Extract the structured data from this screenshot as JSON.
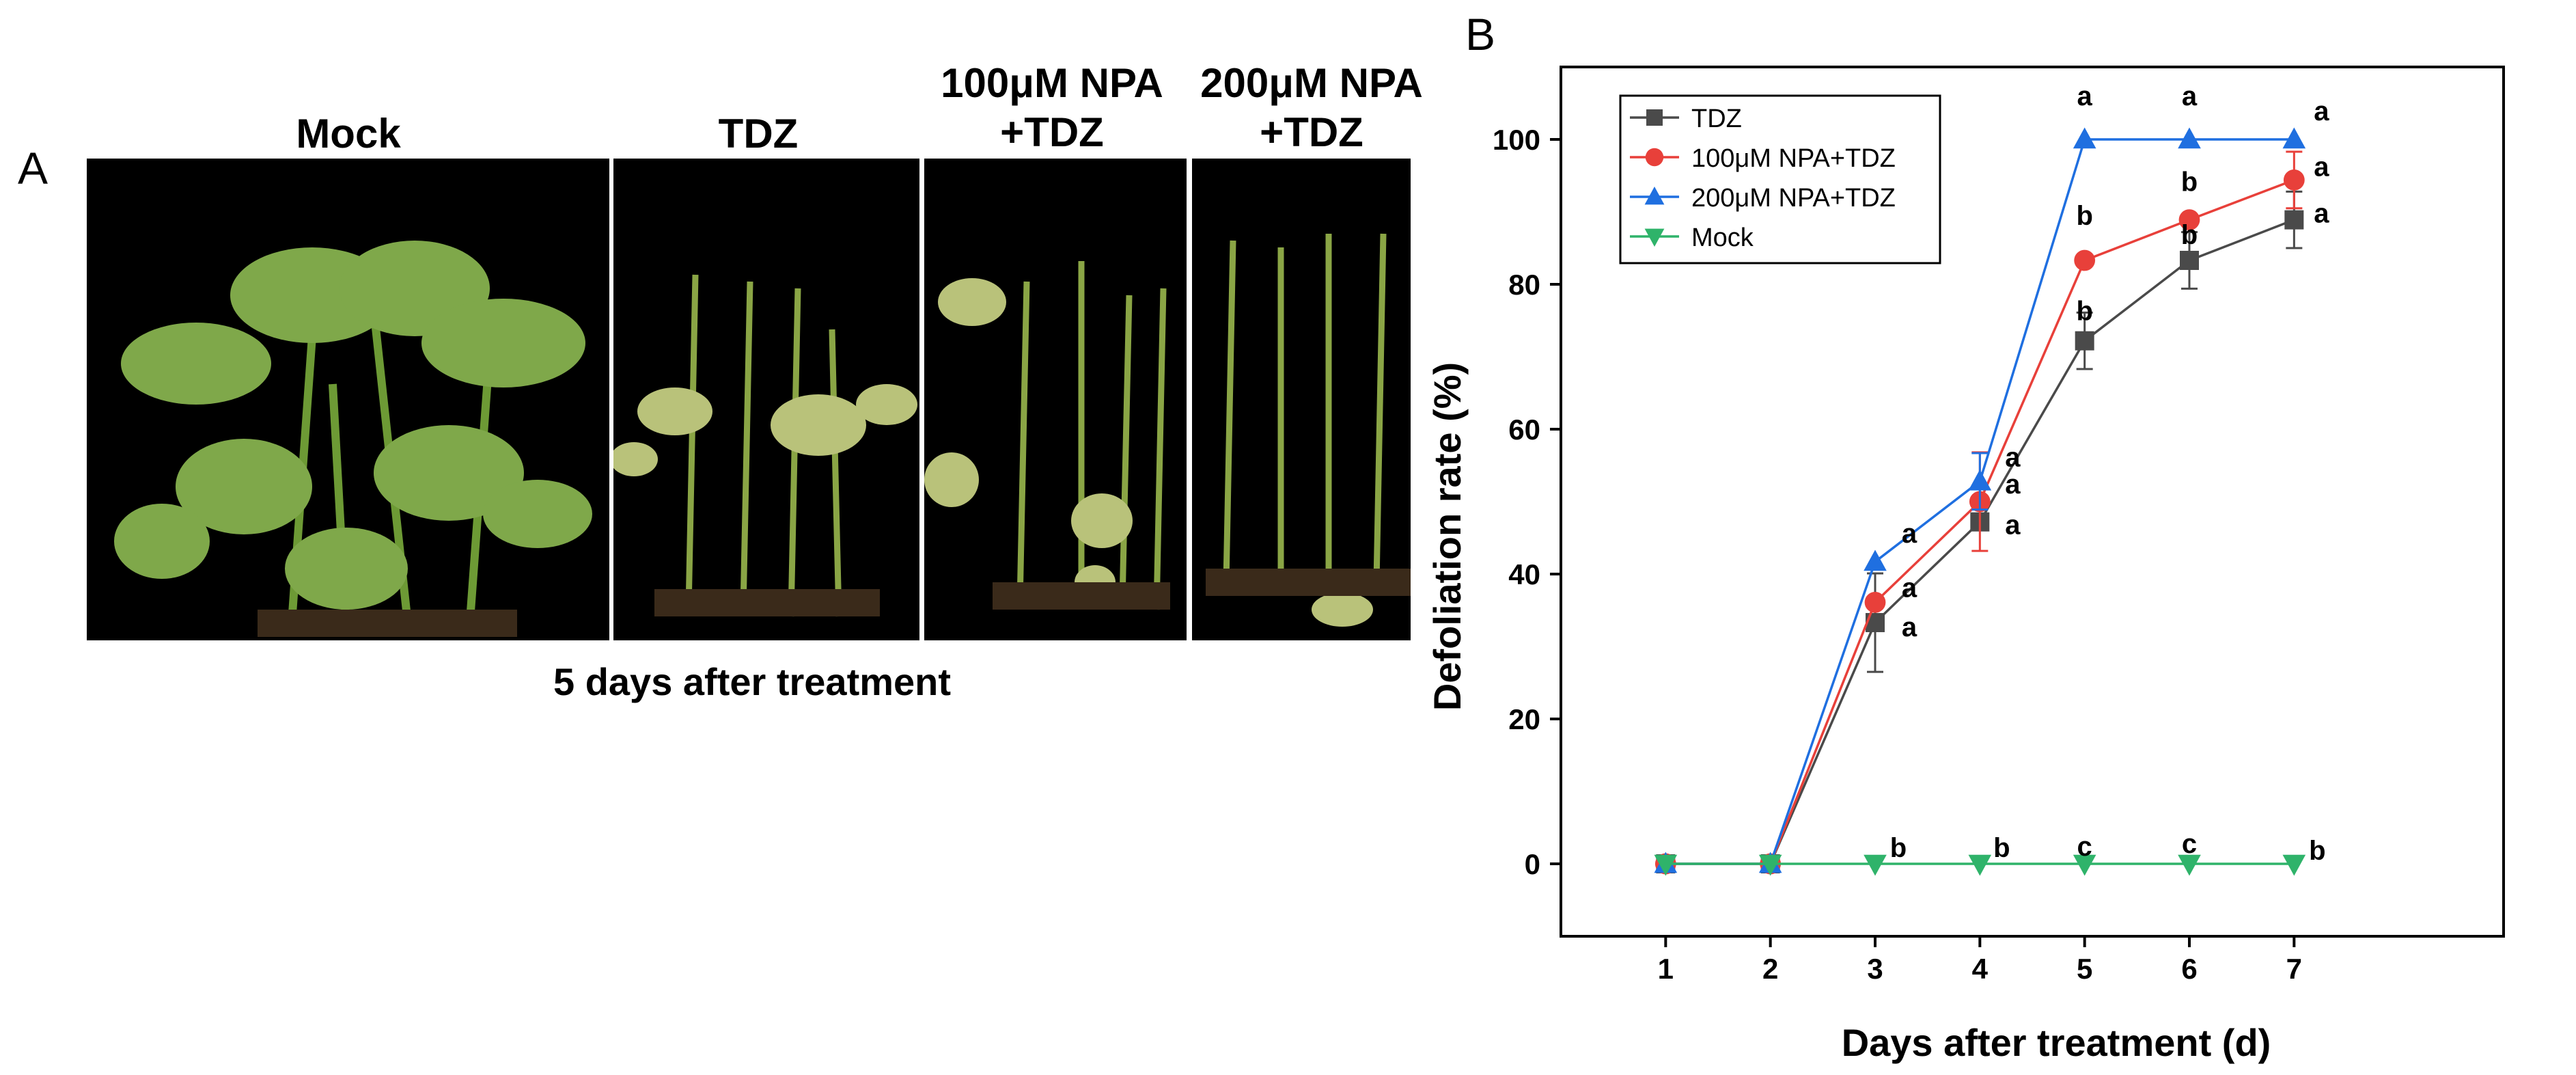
{
  "panel_a": {
    "letter": "A",
    "labels": {
      "mock": "Mock",
      "tdz": "TDZ",
      "npa100_line1": "100μM NPA",
      "npa100_line2": "+TDZ",
      "npa200_line1": "200μM NPA",
      "npa200_line2": "+TDZ"
    },
    "caption": "5 days after treatment"
  },
  "panel_b": {
    "letter": "B"
  },
  "colors": {
    "tdz": "#4a4a4a",
    "npa100": "#e8403a",
    "npa200": "#1f6fe0",
    "mock": "#2fb36a",
    "photo_bg": "#000000",
    "leaf": "#7fa84a",
    "leaf_dry": "#b9c27a"
  },
  "chart_data": {
    "type": "line",
    "xlabel": "Days after treatment (d)",
    "ylabel": "Defoliation rate (%)",
    "xlim": [
      0,
      9
    ],
    "ylim": [
      -10,
      110
    ],
    "x_ticks": [
      1,
      2,
      3,
      4,
      5,
      6,
      7
    ],
    "y_ticks": [
      0,
      20,
      40,
      60,
      80,
      100
    ],
    "x": [
      1,
      2,
      3,
      4,
      5,
      6,
      7
    ],
    "legend_position": "top-left",
    "series": [
      {
        "key": "tdz",
        "name": "TDZ",
        "marker": "square",
        "values": [
          0,
          0,
          33.3,
          47.2,
          72.2,
          83.3,
          88.9
        ],
        "errors": [
          0,
          0,
          6.8,
          0,
          3.9,
          3.9,
          3.9
        ],
        "letters": [
          "",
          "",
          "a",
          "a",
          "b",
          "b",
          "a"
        ]
      },
      {
        "key": "npa100",
        "name": "100μM NPA+TDZ",
        "marker": "circle",
        "values": [
          0,
          0,
          36.1,
          50.0,
          83.3,
          88.9,
          94.4
        ],
        "errors": [
          0,
          0,
          0,
          6.8,
          0,
          0,
          3.9
        ],
        "letters": [
          "",
          "",
          "a",
          "a",
          "b",
          "b",
          "a"
        ]
      },
      {
        "key": "npa200",
        "name": "200μM NPA+TDZ",
        "marker": "triangle-up",
        "values": [
          0,
          0,
          41.7,
          52.8,
          100,
          100,
          100
        ],
        "errors": [
          0,
          0,
          0,
          3.9,
          0,
          0,
          0
        ],
        "letters": [
          "",
          "",
          "a",
          "a",
          "a",
          "a",
          "a"
        ]
      },
      {
        "key": "mock",
        "name": "Mock",
        "marker": "triangle-down",
        "values": [
          0,
          0,
          0,
          0,
          0,
          0,
          0
        ],
        "errors": [
          0,
          0,
          0,
          0,
          0,
          0,
          0
        ],
        "letters": [
          "",
          "",
          "b",
          "b",
          "c",
          "c",
          "b"
        ]
      }
    ]
  }
}
